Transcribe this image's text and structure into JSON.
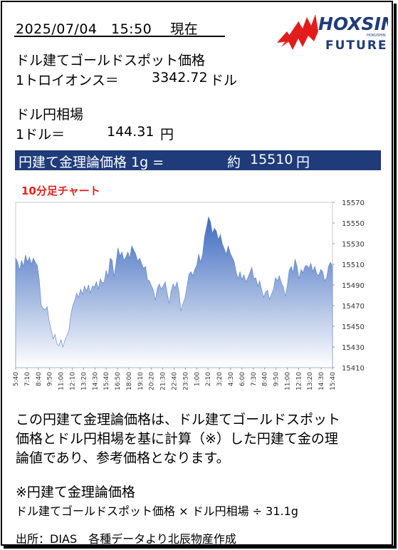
{
  "header": {
    "datetime": "2025/07/04　15:50　 現在",
    "logo_text": "HOXSIN",
    "logo_sub": "FUTURES",
    "logo_small": "HOKUSHIN"
  },
  "gold": {
    "label": "ドル建てゴールドスポット価格",
    "unit_label": "1トロイオンス＝",
    "value": "3342.72",
    "unit": "ドル"
  },
  "fx": {
    "label": "ドル円相場",
    "unit_label": "1ドル＝",
    "value": "144.31",
    "unit": "円"
  },
  "result": {
    "label": "円建て金理論価格 1g =",
    "approx": "約",
    "value": "15510",
    "unit": "円"
  },
  "chart_label": "10分足チャート",
  "chart_data": {
    "type": "area",
    "title": "10分足チャート",
    "xlabel": "",
    "ylabel": "",
    "ylim": [
      15410,
      15570
    ],
    "yticks": [
      15410,
      15430,
      15450,
      15470,
      15490,
      15510,
      15530,
      15550,
      15570
    ],
    "xticks": [
      "5:40",
      "7:10",
      "8:40",
      "9:50",
      "11:00",
      "12:10",
      "13:20",
      "14:30",
      "15:40",
      "16:50",
      "18:00",
      "19:10",
      "20:20",
      "21:30",
      "22:40",
      "23:50",
      "1:00",
      "2:10",
      "3:20",
      "4:30",
      "6:00",
      "7:30",
      "8:40",
      "9:50",
      "11:00",
      "12:10",
      "13:20",
      "14:30",
      "15:40"
    ],
    "grid": false,
    "series": [
      {
        "values": [
          15516,
          15512,
          15504,
          15514,
          15508,
          15519,
          15512,
          15517,
          15510,
          15516,
          15512,
          15509,
          15495,
          15470,
          15467,
          15466,
          15469,
          15455,
          15447,
          15438,
          15442,
          15433,
          15431,
          15437,
          15430,
          15436,
          15441,
          15445,
          15461,
          15470,
          15475,
          15482,
          15478,
          15486,
          15481,
          15489,
          15484,
          15490,
          15482,
          15489,
          15488,
          15493,
          15486,
          15496,
          15492,
          15493,
          15504,
          15498,
          15516,
          15514,
          15498,
          15511,
          15526,
          15518,
          15522,
          15514,
          15517,
          15522,
          15516,
          15528,
          15524,
          15520,
          15513,
          15516,
          15511,
          15506,
          15508,
          15495,
          15494,
          15489,
          15485,
          15475,
          15487,
          15491,
          15486,
          15489,
          15493,
          15482,
          15472,
          15484,
          15491,
          15487,
          15493,
          15483,
          15465,
          15472,
          15477,
          15488,
          15500,
          15503,
          15499,
          15505,
          15509,
          15520,
          15512,
          15520,
          15537,
          15546,
          15556,
          15551,
          15540,
          15545,
          15542,
          15534,
          15539,
          15530,
          15525,
          15520,
          15528,
          15521,
          15517,
          15513,
          15503,
          15496,
          15503,
          15495,
          15500,
          15493,
          15497,
          15502,
          15507,
          15496,
          15497,
          15489,
          15494,
          15485,
          15478,
          15483,
          15485,
          15476,
          15481,
          15486,
          15497,
          15494,
          15499,
          15492,
          15488,
          15479,
          15489,
          15504,
          15508,
          15502,
          15515,
          15508,
          15496,
          15505,
          15502,
          15508,
          15509,
          15506,
          15511,
          15503,
          15508,
          15501,
          15499,
          15505,
          15503,
          15494,
          15497,
          15508,
          15512,
          15508
        ]
      }
    ],
    "colors": {
      "fill_top": "#3d6abf",
      "fill_bottom": "#ffffff"
    }
  },
  "description": {
    "line1": "この円建て金理論価格は、ドル建てゴールドスポット",
    "line2": "価格とドル円相場を基に計算（※）した円建て金の理",
    "line3": "論値であり、参考価格となります。"
  },
  "formula": {
    "title": "※円建て金理論価格",
    "text": "ドル建てゴールドスポット価格 × ドル円相場 ÷ 31.1g"
  },
  "footer": {
    "source": "出所：DIAS　各種データより北辰物産作成"
  }
}
